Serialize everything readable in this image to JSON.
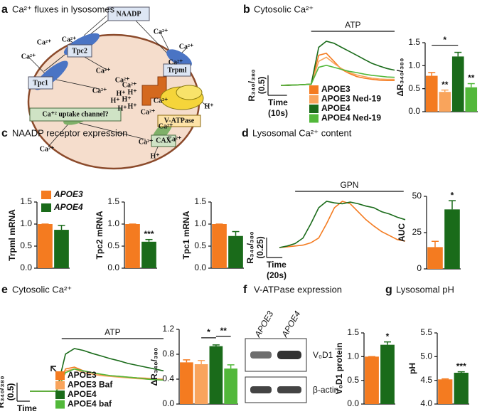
{
  "panels": [
    {
      "letter": "a",
      "title": "Ca²⁺ fluxes in lysosomes"
    },
    {
      "letter": "b",
      "title": "Cytosolic Ca²⁺"
    },
    {
      "letter": "c",
      "title": "NAADP receptor expression"
    },
    {
      "letter": "d",
      "title": "Lysosomal Ca²⁺ content"
    },
    {
      "letter": "e",
      "title": "Cytosolic Ca²⁺"
    },
    {
      "letter": "f",
      "title": "V-ATPase expression"
    },
    {
      "letter": "g",
      "title": "Lysosomal pH"
    }
  ],
  "diagram": {
    "naadp": "NAADP",
    "tpc2": "Tpc2",
    "tpc1": "Tpc1",
    "trpml": "Trpml",
    "vatpase": "V-ATPase",
    "cax": "CAX",
    "uptake": "Ca⁺² uptake channel?",
    "ions": [
      "Ca²⁺",
      "Ca²⁺",
      "Ca²⁺",
      "Ca²⁺",
      "Ca²⁺",
      "Ca²⁺",
      "Ca²⁺",
      "Ca²⁺",
      "Ca²⁺",
      "Ca²⁺",
      "Ca²⁺",
      "Ca²⁺",
      "Ca²⁺",
      "Ca²⁺",
      "Ca²⁺",
      "Ca²⁺",
      "H⁺",
      "H⁺",
      "H⁺",
      "H⁺",
      "H⁺",
      "H⁺",
      "H⁺",
      "H⁺"
    ]
  },
  "blot": {
    "lanes": [
      "APOE3",
      "APOE4"
    ],
    "bands": [
      "V₀D1",
      "β-actin"
    ]
  },
  "chart_data": [
    {
      "type": "line",
      "x": [
        0,
        4,
        8,
        12,
        16,
        20,
        24,
        28,
        32,
        36,
        40,
        44,
        48,
        52,
        56,
        60
      ],
      "series": [
        {
          "name": "APOE3",
          "color": "#f47b20",
          "values": [
            0,
            0,
            0.01,
            0.02,
            0.03,
            0.75,
            0.8,
            0.6,
            0.4,
            0.3,
            0.22,
            0.18,
            0.15,
            0.13,
            0.12,
            0.12
          ]
        },
        {
          "name": "APOE3 Ned-19",
          "color": "#f9a45c",
          "values": [
            0,
            0.01,
            0.01,
            0.02,
            0.03,
            0.6,
            0.7,
            0.55,
            0.42,
            0.32,
            0.26,
            0.22,
            0.18,
            0.16,
            0.15,
            0.15
          ]
        },
        {
          "name": "APOE4",
          "color": "#1a6b1a",
          "values": [
            0,
            0,
            0.01,
            0.02,
            0.03,
            0.95,
            1.1,
            1.05,
            0.95,
            0.85,
            0.75,
            0.65,
            0.55,
            0.48,
            0.42,
            0.38
          ]
        },
        {
          "name": "APOE4 Ned-19",
          "color": "#52b83a",
          "values": [
            0,
            0.01,
            0.01,
            0.02,
            0.03,
            0.45,
            0.5,
            0.45,
            0.4,
            0.35,
            0.32,
            0.28,
            0.25,
            0.23,
            0.21,
            0.2
          ]
        }
      ],
      "ylabel": "R₃₄₀/₃₈₀",
      "yscale": {
        "value": 0.5,
        "label": "(0.5)"
      },
      "xlabel": "Time",
      "xscale": {
        "value": 10,
        "label": "(10s)"
      },
      "stimulus": {
        "label": "ATP",
        "start": 16,
        "end": 60
      }
    },
    {
      "type": "bar",
      "categories": [
        null,
        null,
        null,
        null
      ],
      "values": [
        0.78,
        0.43,
        1.2,
        0.53
      ],
      "errors": [
        0.07,
        0.04,
        0.09,
        0.08
      ],
      "colors": [
        "#f47b20",
        "#f9a45c",
        "#1a6b1a",
        "#52b83a"
      ],
      "ylabel": "ΔR₃₄₀/₃₈₀",
      "ylim": [
        0,
        1.5
      ],
      "yticks": [
        {
          "value": 0,
          "label": "0.0"
        },
        0.5,
        {
          "value": 1,
          "label": "1.0"
        },
        1.5
      ],
      "annotations": [
        {
          "text": "*",
          "from": 0,
          "to": 2
        },
        {
          "text": "**",
          "bar": 1
        },
        {
          "text": "**",
          "bar": 3
        }
      ]
    },
    {
      "type": "bar",
      "categories": [
        null,
        null
      ],
      "values": [
        1.0,
        0.87
      ],
      "errors": [
        0,
        0.1
      ],
      "colors": [
        "#f47b20",
        "#1a6b1a"
      ],
      "ylabel": "Trpml mRNA",
      "ylim": [
        0,
        1.5
      ],
      "yticks": [
        {
          "value": 0,
          "label": "0.0"
        },
        0.5,
        {
          "value": 1,
          "label": "1.0"
        },
        1.5
      ],
      "legend": [
        "APOE3",
        "APOE4"
      ]
    },
    {
      "type": "bar",
      "categories": [
        null,
        null
      ],
      "values": [
        1.0,
        0.6
      ],
      "errors": [
        0,
        0.05
      ],
      "colors": [
        "#f47b20",
        "#1a6b1a"
      ],
      "ylabel": "Tpc2 mRNA",
      "ylim": [
        0,
        1.5
      ],
      "yticks": [
        {
          "value": 0,
          "label": "0.0"
        },
        0.5,
        {
          "value": 1,
          "label": "1.0"
        },
        1.5
      ],
      "annotations": [
        {
          "text": "***",
          "bar": 1
        }
      ]
    },
    {
      "type": "bar",
      "categories": [
        null,
        null
      ],
      "values": [
        1.0,
        0.73
      ],
      "errors": [
        0,
        0.1
      ],
      "colors": [
        "#f47b20",
        "#1a6b1a"
      ],
      "ylabel": "Tpc1 mRNA",
      "ylim": [
        0,
        1.5
      ],
      "yticks": [
        {
          "value": 0,
          "label": "0.0"
        },
        0.5,
        {
          "value": 1,
          "label": "1.0"
        },
        1.5
      ]
    },
    {
      "type": "line",
      "x": [
        0,
        10,
        20,
        30,
        40,
        50,
        60,
        70,
        80,
        90,
        100,
        110,
        120,
        130,
        140,
        150,
        160
      ],
      "series": [
        {
          "name": "APOE3",
          "color": "#f47b20",
          "values": [
            0,
            0.01,
            0.02,
            0.03,
            0.06,
            0.12,
            0.3,
            0.5,
            0.58,
            0.55,
            0.45,
            0.35,
            0.27,
            0.2,
            0.15,
            0.1,
            0.08
          ]
        },
        {
          "name": "APOE4",
          "color": "#1a6b1a",
          "values": [
            0,
            0.02,
            0.05,
            0.12,
            0.3,
            0.5,
            0.58,
            0.56,
            0.55,
            0.57,
            0.55,
            0.52,
            0.5,
            0.45,
            0.42,
            0.38,
            0.35
          ]
        }
      ],
      "ylabel": "R₃₄₀/₃₈₀",
      "yscale": {
        "value": 0.25,
        "label": "(0.25)"
      },
      "xlabel": "Time",
      "xscale": {
        "value": 20,
        "label": "(20s)"
      },
      "stimulus": {
        "label": "GPN",
        "start": 20,
        "end": 158
      }
    },
    {
      "type": "bar",
      "categories": [
        null,
        null
      ],
      "values": [
        15,
        41
      ],
      "errors": [
        4,
        6
      ],
      "colors": [
        "#f47b20",
        "#1a6b1a"
      ],
      "ylabel": "AUC",
      "ylim": [
        0,
        50
      ],
      "yticks": [
        0,
        25,
        50
      ],
      "annotations": [
        {
          "text": "*",
          "bar": 1
        }
      ]
    },
    {
      "type": "line",
      "x": [
        0,
        7,
        14,
        21,
        28,
        35,
        42,
        49,
        56,
        63,
        70,
        77,
        84,
        91,
        98,
        105
      ],
      "series": [
        {
          "name": "APOE3",
          "color": "#f47b20",
          "values": [
            0,
            0,
            0,
            0,
            0.6,
            0.65,
            0.55,
            0.5,
            0.45,
            0.42,
            0.4,
            0.38,
            0.36,
            0.35,
            0.33,
            0.32
          ]
        },
        {
          "name": "APOE3 Baf",
          "color": "#f9a45c",
          "values": [
            0,
            0,
            0,
            0,
            0.55,
            0.6,
            0.5,
            0.46,
            0.42,
            0.4,
            0.38,
            0.36,
            0.34,
            0.33,
            0.32,
            0.3
          ]
        },
        {
          "name": "APOE4",
          "color": "#1a6b1a",
          "values": [
            0,
            0,
            0,
            0,
            1.0,
            1.15,
            1.1,
            1.02,
            0.95,
            0.88,
            0.82,
            0.75,
            0.7,
            0.65,
            0.6,
            0.55
          ]
        },
        {
          "name": "APOE4 baf",
          "color": "#52b83a",
          "values": [
            0,
            0,
            0,
            0,
            0.5,
            0.6,
            0.55,
            0.5,
            0.46,
            0.42,
            0.4,
            0.38,
            0.36,
            0.33,
            0.31,
            0.3
          ]
        }
      ],
      "ylabel": "R₃₄₀/₃₈₀",
      "yscale": {
        "value": 0.5,
        "label": "(0.5)"
      },
      "xlabel": "Time",
      "xscale": {
        "value": 10,
        "label": "(10s)"
      },
      "stimulus": {
        "label": "ATP",
        "start": 25,
        "end": 105
      }
    },
    {
      "type": "bar",
      "categories": [
        null,
        null,
        null,
        null
      ],
      "values": [
        0.67,
        0.64,
        0.93,
        0.57
      ],
      "errors": [
        0.04,
        0.06,
        0.02,
        0.06
      ],
      "colors": [
        "#f47b20",
        "#f9a45c",
        "#1a6b1a",
        "#52b83a"
      ],
      "ylabel": "ΔR₃₄₀/₃₈₀",
      "ylim": [
        0,
        1.2
      ],
      "yticks": [
        {
          "value": 0,
          "label": "0.0"
        },
        0.4,
        0.8,
        1.2
      ],
      "annotations": [
        {
          "text": "*",
          "from": 1,
          "to": 2
        },
        {
          "text": "**",
          "from": 2,
          "to": 3
        }
      ]
    },
    {
      "type": "bar",
      "categories": [
        null,
        null
      ],
      "values": [
        1.0,
        1.25
      ],
      "errors": [
        0,
        0.06
      ],
      "colors": [
        "#f47b20",
        "#1a6b1a"
      ],
      "ylabel": "V₀D1 protein",
      "ylim": [
        0,
        1.5
      ],
      "yticks": [
        {
          "value": 0,
          "label": "0.0"
        },
        0.5,
        {
          "value": 1,
          "label": "1.0"
        },
        1.5
      ],
      "annotations": [
        {
          "text": "*",
          "bar": 1
        }
      ]
    },
    {
      "type": "bar",
      "categories": [
        null,
        null
      ],
      "values": [
        4.52,
        4.66
      ],
      "errors": [
        0.01,
        0.02
      ],
      "colors": [
        "#f47b20",
        "#1a6b1a"
      ],
      "ylabel": "pH",
      "ylim": [
        4.0,
        5.5
      ],
      "yticks": [
        {
          "value": 4,
          "label": "4.0"
        },
        4.5,
        {
          "value": 5,
          "label": "5.0"
        },
        5.5
      ],
      "annotations": [
        {
          "text": "***",
          "bar": 1
        }
      ]
    }
  ]
}
